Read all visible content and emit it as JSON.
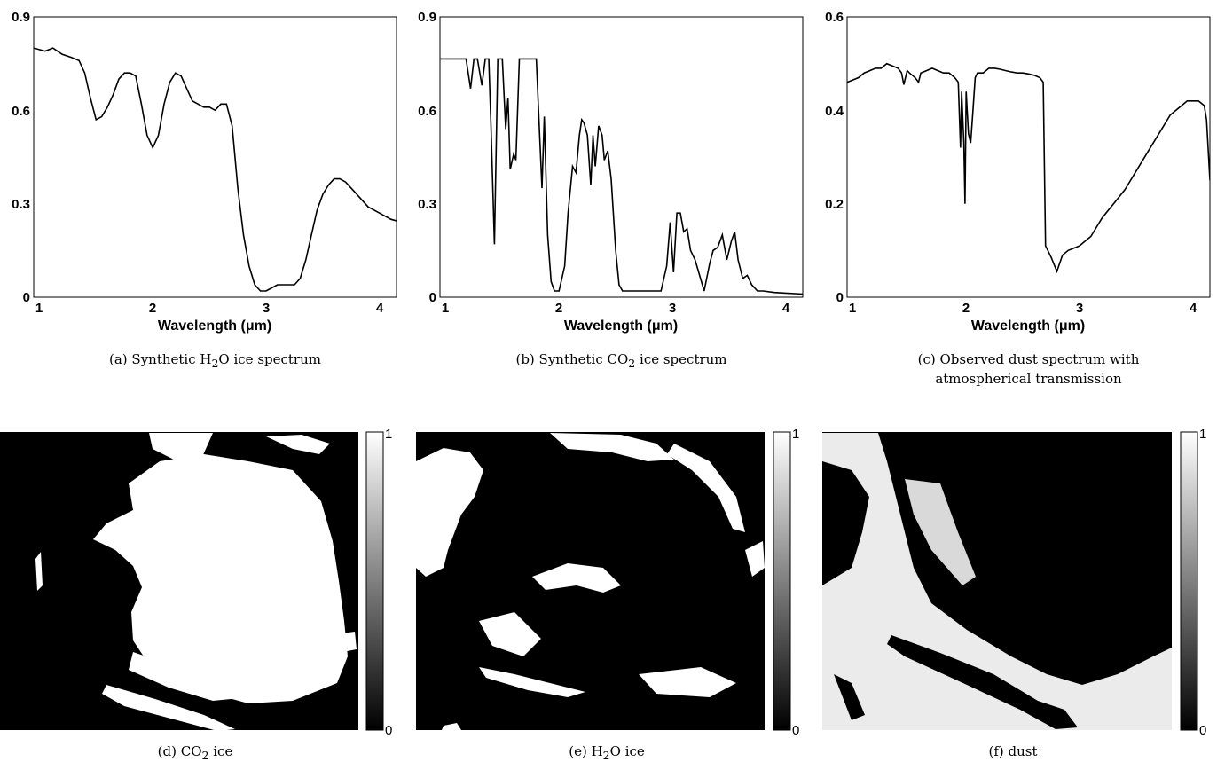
{
  "chart_data": [
    {
      "type": "line",
      "xlabel": "Wavelength (μm)",
      "xlim": [
        0.95,
        4.15
      ],
      "ylim": [
        0,
        0.9
      ],
      "xticks": [
        "1",
        "2",
        "3",
        "4"
      ],
      "yticks": [
        "0",
        "0.3",
        "0.6",
        "0.9"
      ],
      "caption": {
        "prefix": "(a) Synthetic H",
        "sub": "2",
        "suffix": "O ice spectrum"
      },
      "x": [
        0.95,
        1.05,
        1.12,
        1.2,
        1.28,
        1.35,
        1.4,
        1.45,
        1.5,
        1.55,
        1.6,
        1.65,
        1.7,
        1.75,
        1.8,
        1.85,
        1.9,
        1.95,
        2.0,
        2.05,
        2.1,
        2.15,
        2.2,
        2.25,
        2.3,
        2.35,
        2.4,
        2.45,
        2.5,
        2.55,
        2.6,
        2.65,
        2.7,
        2.75,
        2.8,
        2.85,
        2.9,
        2.95,
        3.0,
        3.05,
        3.1,
        3.15,
        3.2,
        3.25,
        3.3,
        3.35,
        3.4,
        3.45,
        3.5,
        3.55,
        3.6,
        3.65,
        3.7,
        3.75,
        3.8,
        3.85,
        3.9,
        3.95,
        4.0,
        4.05,
        4.1,
        4.15
      ],
      "y": [
        0.8,
        0.79,
        0.8,
        0.78,
        0.77,
        0.76,
        0.72,
        0.64,
        0.57,
        0.58,
        0.61,
        0.65,
        0.7,
        0.72,
        0.72,
        0.71,
        0.62,
        0.52,
        0.48,
        0.52,
        0.62,
        0.69,
        0.72,
        0.71,
        0.67,
        0.63,
        0.62,
        0.61,
        0.61,
        0.6,
        0.62,
        0.62,
        0.55,
        0.35,
        0.2,
        0.1,
        0.04,
        0.02,
        0.02,
        0.03,
        0.04,
        0.04,
        0.04,
        0.04,
        0.06,
        0.12,
        0.2,
        0.28,
        0.33,
        0.36,
        0.38,
        0.38,
        0.37,
        0.35,
        0.33,
        0.31,
        0.29,
        0.28,
        0.27,
        0.26,
        0.25,
        0.245
      ]
    },
    {
      "type": "line",
      "xlabel": "Wavelength (μm)",
      "xlim": [
        0.95,
        4.15
      ],
      "ylim": [
        0,
        0.9
      ],
      "xticks": [
        "1",
        "2",
        "3",
        "4"
      ],
      "yticks": [
        "0",
        "0.3",
        "0.6",
        "0.9"
      ],
      "caption": {
        "prefix": "(b) Synthetic CO",
        "sub": "2",
        "suffix": " ice spectrum"
      },
      "x": [
        0.95,
        1.18,
        1.22,
        1.25,
        1.28,
        1.32,
        1.35,
        1.38,
        1.4,
        1.43,
        1.46,
        1.5,
        1.53,
        1.55,
        1.57,
        1.6,
        1.62,
        1.65,
        1.68,
        1.72,
        1.8,
        1.85,
        1.87,
        1.9,
        1.93,
        1.96,
        2.0,
        2.05,
        2.08,
        2.12,
        2.15,
        2.18,
        2.2,
        2.22,
        2.25,
        2.28,
        2.3,
        2.32,
        2.35,
        2.38,
        2.4,
        2.43,
        2.46,
        2.5,
        2.53,
        2.56,
        2.6,
        2.7,
        2.8,
        2.9,
        2.95,
        2.98,
        3.01,
        3.04,
        3.07,
        3.1,
        3.13,
        3.16,
        3.2,
        3.24,
        3.28,
        3.33,
        3.36,
        3.4,
        3.44,
        3.48,
        3.52,
        3.55,
        3.58,
        3.62,
        3.66,
        3.7,
        3.75,
        3.8,
        3.9,
        4.15
      ],
      "y": [
        0.765,
        0.765,
        0.67,
        0.765,
        0.765,
        0.68,
        0.765,
        0.765,
        0.55,
        0.17,
        0.765,
        0.765,
        0.54,
        0.64,
        0.41,
        0.46,
        0.44,
        0.765,
        0.765,
        0.765,
        0.765,
        0.35,
        0.58,
        0.2,
        0.05,
        0.02,
        0.02,
        0.1,
        0.27,
        0.42,
        0.4,
        0.52,
        0.57,
        0.56,
        0.52,
        0.36,
        0.52,
        0.42,
        0.55,
        0.52,
        0.44,
        0.47,
        0.38,
        0.15,
        0.04,
        0.02,
        0.02,
        0.02,
        0.02,
        0.02,
        0.1,
        0.24,
        0.08,
        0.27,
        0.27,
        0.21,
        0.22,
        0.15,
        0.12,
        0.07,
        0.02,
        0.11,
        0.15,
        0.16,
        0.2,
        0.12,
        0.18,
        0.21,
        0.12,
        0.06,
        0.07,
        0.04,
        0.02,
        0.02,
        0.015,
        0.01
      ]
    },
    {
      "type": "line",
      "xlabel": "Wavelength (μm)",
      "xlim": [
        0.95,
        4.15
      ],
      "ylim": [
        0,
        0.6
      ],
      "xticks": [
        "1",
        "2",
        "3",
        "4"
      ],
      "yticks": [
        "0",
        "0.2",
        "0.4",
        "0.6"
      ],
      "caption": {
        "line1": "(c) Observed dust spectrum with",
        "line2": "atmospherical transmission"
      },
      "x": [
        0.95,
        1.05,
        1.1,
        1.15,
        1.2,
        1.25,
        1.3,
        1.35,
        1.4,
        1.43,
        1.45,
        1.48,
        1.5,
        1.55,
        1.58,
        1.6,
        1.65,
        1.7,
        1.75,
        1.8,
        1.85,
        1.9,
        1.93,
        1.95,
        1.96,
        1.98,
        1.99,
        2.0,
        2.02,
        2.04,
        2.06,
        2.08,
        2.1,
        2.15,
        2.2,
        2.25,
        2.3,
        2.35,
        2.4,
        2.45,
        2.5,
        2.55,
        2.6,
        2.65,
        2.68,
        2.7,
        2.75,
        2.8,
        2.85,
        2.9,
        2.95,
        3.0,
        3.05,
        3.1,
        3.15,
        3.2,
        3.3,
        3.4,
        3.5,
        3.6,
        3.7,
        3.8,
        3.9,
        3.95,
        4.0,
        4.05,
        4.1,
        4.12,
        4.15
      ],
      "y": [
        0.46,
        0.47,
        0.48,
        0.485,
        0.49,
        0.49,
        0.5,
        0.495,
        0.49,
        0.48,
        0.455,
        0.485,
        0.48,
        0.47,
        0.46,
        0.48,
        0.485,
        0.49,
        0.485,
        0.48,
        0.48,
        0.47,
        0.46,
        0.32,
        0.44,
        0.33,
        0.2,
        0.44,
        0.35,
        0.33,
        0.4,
        0.47,
        0.48,
        0.48,
        0.49,
        0.49,
        0.488,
        0.485,
        0.482,
        0.48,
        0.48,
        0.478,
        0.475,
        0.47,
        0.46,
        0.11,
        0.085,
        0.055,
        0.09,
        0.1,
        0.105,
        0.11,
        0.12,
        0.13,
        0.15,
        0.17,
        0.2,
        0.23,
        0.27,
        0.31,
        0.35,
        0.39,
        0.41,
        0.42,
        0.42,
        0.42,
        0.41,
        0.38,
        0.25
      ]
    },
    {
      "type": "heatmap",
      "colorbar": {
        "min": "0",
        "max": "1"
      },
      "caption": {
        "prefix": "(d) CO",
        "sub": "2",
        "suffix": " ice"
      }
    },
    {
      "type": "heatmap",
      "colorbar": {
        "min": "0",
        "max": "1"
      },
      "caption": {
        "prefix": "(e) H",
        "sub": "2",
        "suffix": "O ice"
      }
    },
    {
      "type": "heatmap",
      "colorbar": {
        "min": "0",
        "max": "1"
      },
      "caption": {
        "prefix": "(f) dust",
        "sub": "",
        "suffix": ""
      }
    }
  ]
}
